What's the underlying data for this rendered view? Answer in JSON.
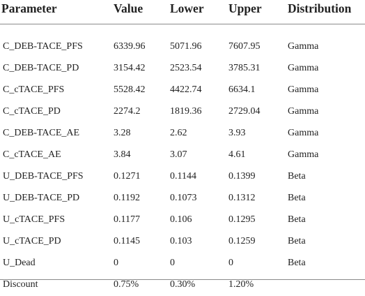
{
  "table": {
    "headers": [
      "Parameter",
      "Value",
      "Lower",
      "Upper",
      "Distribution"
    ],
    "rows": [
      [
        "C_DEB-TACE_PFS",
        "6339.96",
        "5071.96",
        "7607.95",
        "Gamma"
      ],
      [
        "C_DEB-TACE_PD",
        "3154.42",
        "2523.54",
        "3785.31",
        "Gamma"
      ],
      [
        "C_cTACE_PFS",
        "5528.42",
        "4422.74",
        "6634.1",
        "Gamma"
      ],
      [
        "C_cTACE_PD",
        "2274.2",
        "1819.36",
        "2729.04",
        "Gamma"
      ],
      [
        "C_DEB-TACE_AE",
        "3.28",
        "2.62",
        "3.93",
        "Gamma"
      ],
      [
        "C_cTACE_AE",
        "3.84",
        "3.07",
        "4.61",
        "Gamma"
      ],
      [
        "U_DEB-TACE_PFS",
        "0.1271",
        "0.1144",
        "0.1399",
        "Beta"
      ],
      [
        "U_DEB-TACE_PD",
        "0.1192",
        "0.1073",
        "0.1312",
        "Beta"
      ],
      [
        "U_cTACE_PFS",
        "0.1177",
        "0.106",
        "0.1295",
        "Beta"
      ],
      [
        "U_cTACE_PD",
        "0.1145",
        "0.103",
        "0.1259",
        "Beta"
      ],
      [
        "U_Dead",
        "0",
        "0",
        "0",
        "Beta"
      ],
      [
        "Discount",
        "0.75%",
        "0.30%",
        "1.20%",
        ""
      ]
    ]
  }
}
